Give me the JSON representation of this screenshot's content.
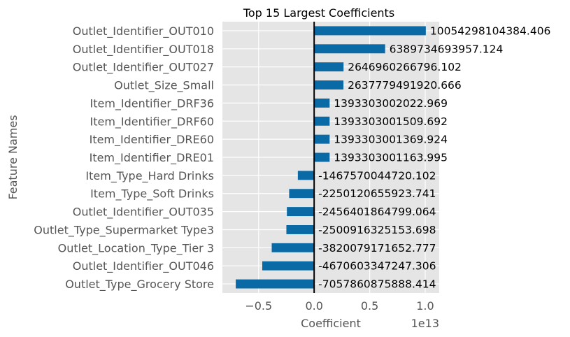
{
  "chart_data": {
    "type": "bar",
    "orientation": "horizontal",
    "title": "Top 15 Largest Coefficients",
    "xlabel": "Coefficient",
    "ylabel": "Feature Names",
    "x_offset_text": "1e13",
    "x_tick_values": [
      -5000000000000,
      0,
      5000000000000,
      10000000000000
    ],
    "x_tick_labels": [
      "−0.5",
      "0.0",
      "0.5",
      "1.0"
    ],
    "xlim": [
      -8260000000000,
      11260000000000
    ],
    "grid": true,
    "zero_line": true,
    "colors": {
      "bar": "#0a6aa6",
      "plot_background": "#e5e5e5",
      "grid": "#ffffff",
      "zero_line": "#000000"
    },
    "categories": [
      "Outlet_Identifier_OUT010",
      "Outlet_Identifier_OUT018",
      "Outlet_Identifier_OUT027",
      "Outlet_Size_Small",
      "Item_Identifier_DRF36",
      "Item_Identifier_DRF60",
      "Item_Identifier_DRE60",
      "Item_Identifier_DRE01",
      "Item_Type_Hard Drinks",
      "Item_Type_Soft Drinks",
      "Outlet_Identifier_OUT035",
      "Outlet_Type_Supermarket Type3",
      "Outlet_Location_Type_Tier 3",
      "Outlet_Identifier_OUT046",
      "Outlet_Type_Grocery Store"
    ],
    "values": [
      10054298104384.406,
      6389734693957.124,
      2646960266796.102,
      2637779491920.666,
      1393303002022.969,
      1393303001509.692,
      1393303001369.924,
      1393303001163.995,
      -1467570044720.102,
      -2250120655923.741,
      -2456401864799.064,
      -2500916325153.698,
      -3820079171652.777,
      -4670603347247.306,
      -7057860875888.414
    ],
    "value_labels": [
      "10054298104384.406",
      "6389734693957.124",
      "2646960266796.102",
      "2637779491920.666",
      "1393303002022.969",
      "1393303001509.692",
      "1393303001369.924",
      "1393303001163.995",
      "-1467570044720.102",
      "-2250120655923.741",
      "-2456401864799.064",
      "-2500916325153.698",
      "-3820079171652.777",
      "-4670603347247.306",
      "-7057860875888.414"
    ]
  }
}
